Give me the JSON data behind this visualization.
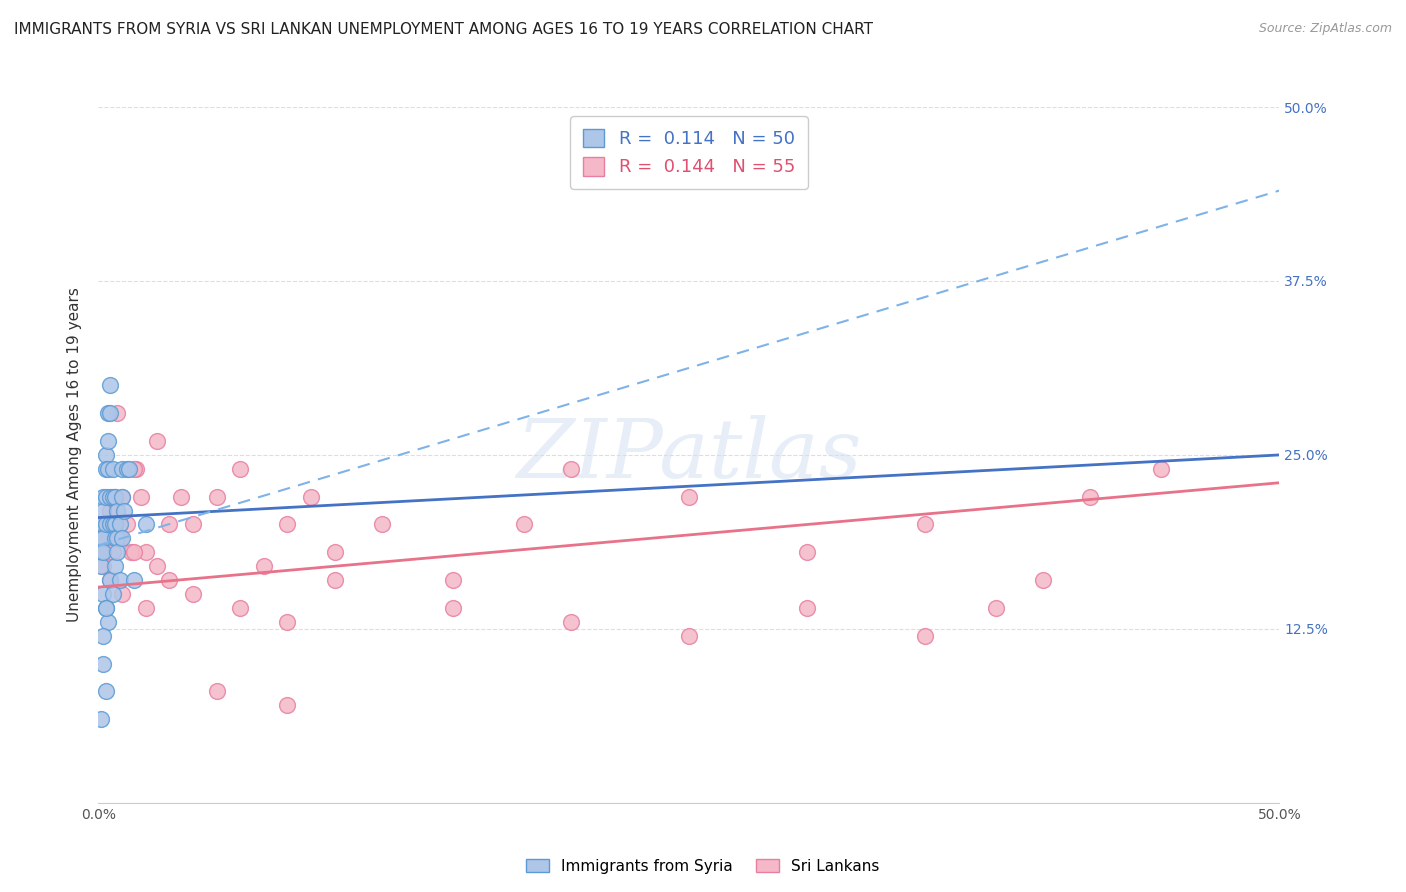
{
  "title": "IMMIGRANTS FROM SYRIA VS SRI LANKAN UNEMPLOYMENT AMONG AGES 16 TO 19 YEARS CORRELATION CHART",
  "source": "Source: ZipAtlas.com",
  "ylabel": "Unemployment Among Ages 16 to 19 years",
  "xlim": [
    0,
    0.5
  ],
  "ylim": [
    0,
    0.5
  ],
  "series1_label": "Immigrants from Syria",
  "series1_color": "#aec6e8",
  "series1_edge": "#5b9bd5",
  "series1_R": "0.114",
  "series1_N": "50",
  "series2_label": "Sri Lankans",
  "series2_color": "#f4b8c8",
  "series2_edge": "#e87fa0",
  "series2_R": "0.144",
  "series2_N": "55",
  "series1_x": [
    0.001,
    0.001,
    0.001,
    0.001,
    0.002,
    0.002,
    0.002,
    0.002,
    0.002,
    0.003,
    0.003,
    0.003,
    0.003,
    0.004,
    0.004,
    0.004,
    0.005,
    0.005,
    0.005,
    0.005,
    0.006,
    0.006,
    0.006,
    0.007,
    0.007,
    0.007,
    0.008,
    0.008,
    0.009,
    0.01,
    0.01,
    0.011,
    0.012,
    0.013,
    0.002,
    0.003,
    0.004,
    0.005,
    0.006,
    0.007,
    0.008,
    0.009,
    0.01,
    0.015,
    0.02,
    0.002,
    0.003,
    0.001,
    0.002,
    0.003
  ],
  "series1_y": [
    0.2,
    0.19,
    0.18,
    0.17,
    0.22,
    0.21,
    0.2,
    0.19,
    0.18,
    0.25,
    0.24,
    0.22,
    0.2,
    0.28,
    0.26,
    0.24,
    0.3,
    0.28,
    0.22,
    0.2,
    0.24,
    0.22,
    0.2,
    0.22,
    0.2,
    0.19,
    0.21,
    0.19,
    0.2,
    0.24,
    0.22,
    0.21,
    0.24,
    0.24,
    0.15,
    0.14,
    0.13,
    0.16,
    0.15,
    0.17,
    0.18,
    0.16,
    0.19,
    0.16,
    0.2,
    0.1,
    0.08,
    0.06,
    0.12,
    0.14
  ],
  "series2_x": [
    0.001,
    0.002,
    0.003,
    0.004,
    0.005,
    0.006,
    0.007,
    0.008,
    0.009,
    0.01,
    0.012,
    0.014,
    0.016,
    0.018,
    0.02,
    0.025,
    0.03,
    0.035,
    0.04,
    0.05,
    0.06,
    0.07,
    0.08,
    0.09,
    0.1,
    0.12,
    0.15,
    0.18,
    0.2,
    0.25,
    0.3,
    0.35,
    0.38,
    0.42,
    0.45,
    0.005,
    0.01,
    0.015,
    0.02,
    0.03,
    0.04,
    0.06,
    0.08,
    0.1,
    0.15,
    0.2,
    0.25,
    0.3,
    0.35,
    0.4,
    0.008,
    0.015,
    0.025,
    0.05,
    0.08
  ],
  "series2_y": [
    0.18,
    0.17,
    0.19,
    0.2,
    0.21,
    0.18,
    0.22,
    0.2,
    0.19,
    0.22,
    0.2,
    0.18,
    0.24,
    0.22,
    0.18,
    0.17,
    0.2,
    0.22,
    0.2,
    0.22,
    0.24,
    0.17,
    0.2,
    0.22,
    0.18,
    0.2,
    0.16,
    0.2,
    0.24,
    0.22,
    0.18,
    0.2,
    0.14,
    0.22,
    0.24,
    0.16,
    0.15,
    0.18,
    0.14,
    0.16,
    0.15,
    0.14,
    0.13,
    0.16,
    0.14,
    0.13,
    0.12,
    0.14,
    0.12,
    0.16,
    0.28,
    0.24,
    0.26,
    0.08,
    0.07
  ],
  "trend1_x0": 0.0,
  "trend1_y0": 0.205,
  "trend1_x1": 0.5,
  "trend1_y1": 0.25,
  "trend1_dash_x0": 0.0,
  "trend1_dash_y0": 0.185,
  "trend1_dash_x1": 0.5,
  "trend1_dash_y1": 0.44,
  "trend2_x0": 0.0,
  "trend2_y0": 0.155,
  "trend2_x1": 0.5,
  "trend2_y1": 0.23,
  "watermark_text": "ZIPatlas",
  "background_color": "#ffffff",
  "grid_color": "#dedede",
  "title_fontsize": 11,
  "axis_label_fontsize": 11,
  "tick_fontsize": 10,
  "legend_fontsize": 13
}
